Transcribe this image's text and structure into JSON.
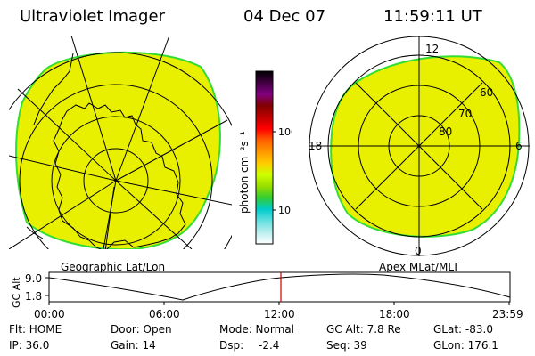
{
  "header": {
    "instrument": "Ultraviolet Imager",
    "date": "04 Dec 07",
    "time": "11:59:11 UT"
  },
  "colorbar": {
    "label": "photon cm⁻²s⁻¹",
    "ticks": [
      "100",
      "10"
    ],
    "colors": [
      "#000000",
      "#400040",
      "#800080",
      "#800000",
      "#c00000",
      "#ff0000",
      "#ff6000",
      "#ff9900",
      "#ffcc00",
      "#ccff00",
      "#99dd00",
      "#33cc33",
      "#00cccc",
      "#66e0e0",
      "#bbeeee",
      "#ffffff"
    ]
  },
  "geo_map": {
    "label": "Geographic Lat/Lon",
    "fill_color": "#e8f000",
    "edge_color": "#33dd33"
  },
  "polar_plot": {
    "label": "Apex MLat/MLT",
    "clock_labels": [
      "12",
      "18",
      "6",
      "0"
    ],
    "lat_labels": [
      "60",
      "70",
      "80"
    ],
    "fill_color": "#e8f000",
    "edge_color": "#33dd33"
  },
  "timeline": {
    "ylabel": "GC Alt",
    "yticks": [
      "9.0",
      "1.8"
    ],
    "xticks": [
      "00:00",
      "06:00",
      "12:00",
      "18:00",
      "23:59"
    ],
    "current_time_color": "#cc0000"
  },
  "status": {
    "flt": "Flt: HOME",
    "ip": "IP: 36.0",
    "door": "Door: Open",
    "gain": "Gain: 14",
    "mode": "Mode: Normal",
    "dsp_label": "Dsp:",
    "dsp_value": "-2.4",
    "gc_alt": "GC Alt: 7.8 Re",
    "seq": "Seq: 39",
    "glat": "GLat: -83.0",
    "glon": "GLon: 176.1"
  }
}
